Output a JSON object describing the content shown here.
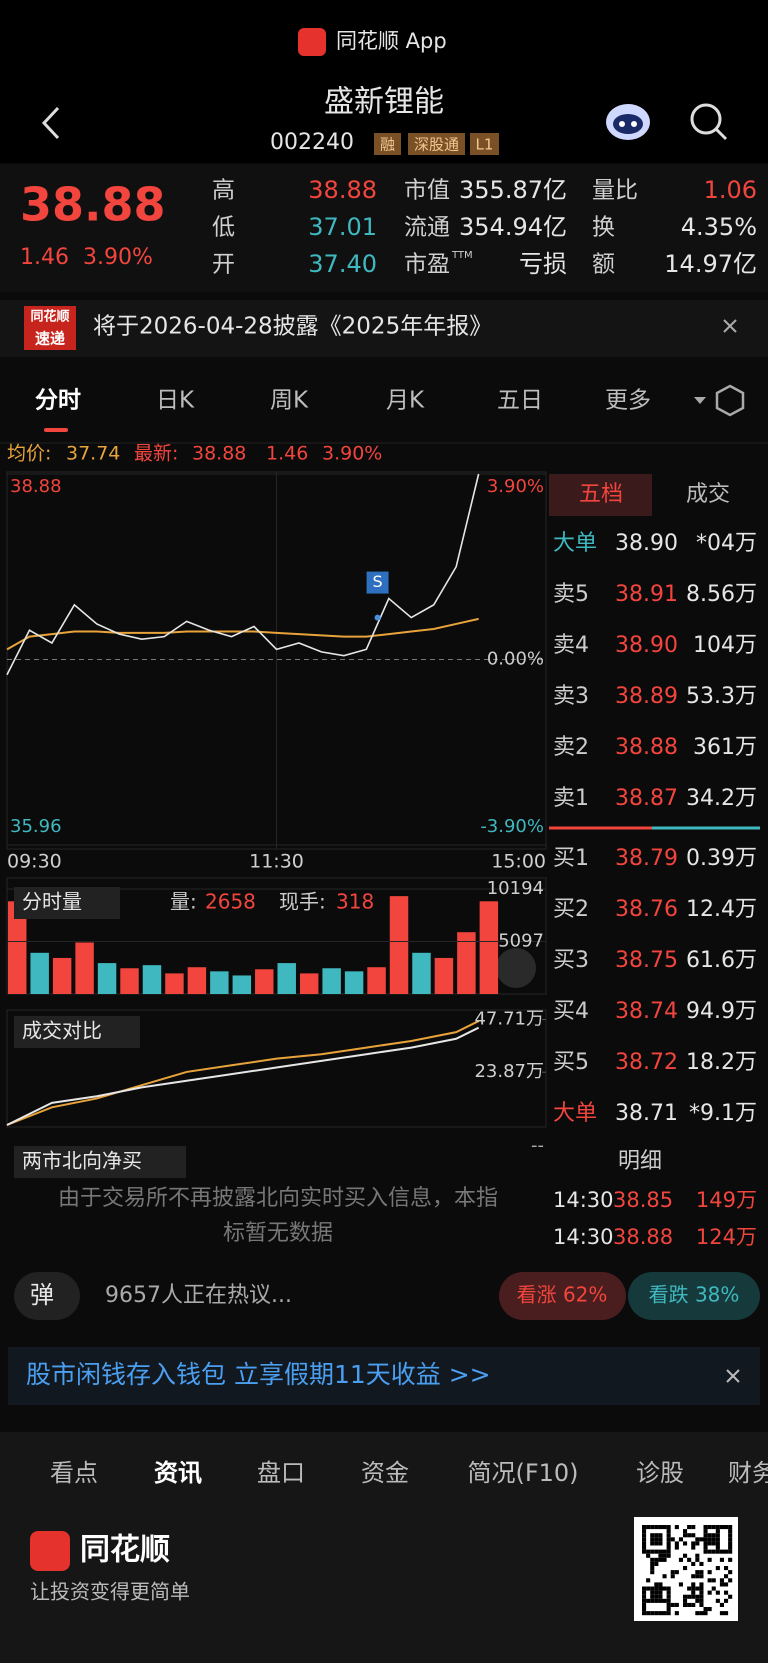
{
  "status_bar": {
    "app": "同花顺 App"
  },
  "header": {
    "title": "盛新锂能",
    "code": "002240",
    "tags": [
      "融",
      "深股通",
      "L1"
    ]
  },
  "quote": {
    "price": "38.88",
    "change": "1.46",
    "pct": "3.90%",
    "stats": [
      [
        {
          "label": "高",
          "value": "38.88",
          "color": "#f2453d"
        },
        {
          "label": "低",
          "value": "37.01",
          "color": "#3fb8c0"
        },
        {
          "label": "开",
          "value": "37.40",
          "color": "#3fb8c0"
        }
      ],
      [
        {
          "label": "市值",
          "value": "355.87亿",
          "color": "#e6e6e6"
        },
        {
          "label": "流通",
          "value": "354.94亿",
          "color": "#e6e6e6"
        },
        {
          "label": "市盈",
          "sup": "TTM",
          "value": "亏损",
          "color": "#e6e6e6"
        }
      ],
      [
        {
          "label": "量比",
          "value": "1.06",
          "color": "#f2453d"
        },
        {
          "label": "换",
          "value": "4.35%",
          "color": "#e6e6e6"
        },
        {
          "label": "额",
          "value": "14.97亿",
          "color": "#e6e6e6"
        }
      ]
    ]
  },
  "notice": {
    "badge": [
      "同花顺",
      "速递"
    ],
    "text": "将于2026-04-28披露《2025年年报》"
  },
  "tabs": [
    "分时",
    "日K",
    "周K",
    "月K",
    "五日",
    "更多"
  ],
  "intraday": {
    "type": "line",
    "avg_label": "均价:",
    "avg": "37.74",
    "latest_label": "最新:",
    "latest": "38.88",
    "change": "1.46",
    "pct": "3.90%",
    "x": [
      0,
      10,
      20,
      30,
      40,
      50,
      60,
      70,
      80,
      90,
      100,
      110,
      120,
      130,
      140,
      150,
      160,
      170,
      180,
      190,
      200,
      210
    ],
    "price": [
      37.3,
      37.65,
      37.55,
      37.85,
      37.7,
      37.62,
      37.58,
      37.6,
      37.72,
      37.65,
      37.6,
      37.68,
      37.5,
      37.55,
      37.48,
      37.45,
      37.5,
      37.9,
      37.75,
      37.85,
      38.15,
      38.88
    ],
    "avg_line": [
      37.5,
      37.6,
      37.62,
      37.64,
      37.64,
      37.63,
      37.63,
      37.63,
      37.64,
      37.64,
      37.64,
      37.64,
      37.63,
      37.62,
      37.61,
      37.6,
      37.6,
      37.62,
      37.64,
      37.66,
      37.7,
      37.74
    ],
    "price_color": "#e6e6e6",
    "avg_color": "#e8a33a",
    "xlim": [
      0,
      240
    ],
    "xticks": [
      {
        "value": 0,
        "label": "09:30"
      },
      {
        "value": 120,
        "label": "11:30"
      },
      {
        "value": 240,
        "label": "15:00"
      }
    ],
    "ylim": [
      35.96,
      38.88
    ],
    "yticks": [
      38.88,
      35.96
    ],
    "y2lim": [
      -3.9,
      3.9
    ],
    "y2ticks": [
      {
        "value": 3.9,
        "label": "3.90%"
      },
      {
        "value": 0,
        "label": "0.00%"
      },
      {
        "value": -3.9,
        "label": "-3.90%"
      }
    ],
    "signal": {
      "label": "S",
      "x": 165,
      "value": 37.75
    }
  },
  "volume": {
    "type": "bar",
    "legend": "分时量",
    "qty_label": "量:",
    "qty": "2658",
    "hand_label": "现手:",
    "hand": "318",
    "x": [
      0,
      10,
      20,
      30,
      40,
      50,
      60,
      70,
      80,
      90,
      100,
      110,
      120,
      130,
      140,
      150,
      160,
      170,
      180,
      190,
      200,
      210
    ],
    "values": [
      9000,
      4000,
      3500,
      5000,
      3000,
      2500,
      2800,
      2000,
      2600,
      2200,
      1800,
      2400,
      3000,
      2000,
      2500,
      2200,
      2600,
      9500,
      4000,
      3500,
      6000,
      9000
    ],
    "colors": [
      "#f2453d",
      "#3fb8c0",
      "#f2453d",
      "#f2453d",
      "#3fb8c0",
      "#f2453d",
      "#3fb8c0",
      "#f2453d",
      "#f2453d",
      "#3fb8c0",
      "#3fb8c0",
      "#f2453d",
      "#3fb8c0",
      "#f2453d",
      "#3fb8c0",
      "#3fb8c0",
      "#f2453d",
      "#f2453d",
      "#3fb8c0",
      "#f2453d",
      "#f2453d",
      "#f2453d"
    ],
    "ylim": [
      0,
      10194
    ],
    "yticks": [
      10194,
      5097
    ]
  },
  "compare": {
    "type": "line",
    "legend": "成交对比",
    "x": [
      0,
      20,
      40,
      60,
      80,
      100,
      120,
      140,
      160,
      180,
      200,
      210
    ],
    "series": [
      {
        "color": "#e8a33a",
        "values": [
          0,
          8,
          12,
          18,
          24,
          27,
          30,
          32,
          35,
          38,
          42,
          47
        ]
      },
      {
        "color": "#e6e6e6",
        "values": [
          0,
          10,
          13,
          17,
          20,
          23,
          26,
          29,
          32,
          35,
          39,
          44
        ]
      }
    ],
    "ylim": [
      0,
      52
    ],
    "yticks": [
      {
        "value": 47.71,
        "label": "47.71万"
      },
      {
        "value": 23.87,
        "label": "23.87万"
      }
    ]
  },
  "north": {
    "legend": "两市北向净买",
    "dash": "--",
    "message": [
      "由于交易所不再披露北向实时买入信息，本指",
      "标暂无数据"
    ]
  },
  "orderbook": {
    "tabs": [
      "五档",
      "成交"
    ],
    "top_big": {
      "label": "大单",
      "price": "38.90",
      "vol": "*04万"
    },
    "asks": [
      {
        "label": "卖5",
        "price": "38.91",
        "vol": "8.56万"
      },
      {
        "label": "卖4",
        "price": "38.90",
        "vol": "104万"
      },
      {
        "label": "卖3",
        "price": "38.89",
        "vol": "53.3万"
      },
      {
        "label": "卖2",
        "price": "38.88",
        "vol": "361万"
      },
      {
        "label": "卖1",
        "price": "38.87",
        "vol": "34.2万"
      }
    ],
    "bids": [
      {
        "label": "买1",
        "price": "38.79",
        "vol": "0.39万"
      },
      {
        "label": "买2",
        "price": "38.76",
        "vol": "12.4万"
      },
      {
        "label": "买3",
        "price": "38.75",
        "vol": "61.6万"
      },
      {
        "label": "买4",
        "price": "38.74",
        "vol": "94.9万"
      },
      {
        "label": "买5",
        "price": "38.72",
        "vol": "18.2万"
      }
    ],
    "bottom_big": {
      "label": "大单",
      "price": "38.71",
      "vol": "*9.1万"
    },
    "detail_label": "明细",
    "trades": [
      {
        "time": "14:30",
        "price": "38.85",
        "vol": "149万"
      },
      {
        "time": "14:30",
        "price": "38.88",
        "vol": "124万"
      }
    ]
  },
  "discussion": {
    "icon": "弹",
    "text": "9657人正在热议...",
    "up": "看涨 62%",
    "down": "看跌 38%"
  },
  "ad": {
    "text": "股市闲钱存入钱包 立享假期11天收益 >>"
  },
  "bottom_tabs": [
    "看点",
    "资讯",
    "盘口",
    "资金",
    "简况(F10)",
    "诊股",
    "财务"
  ],
  "footer": {
    "brand": "同花顺",
    "slogan": "让投资变得更简单"
  }
}
